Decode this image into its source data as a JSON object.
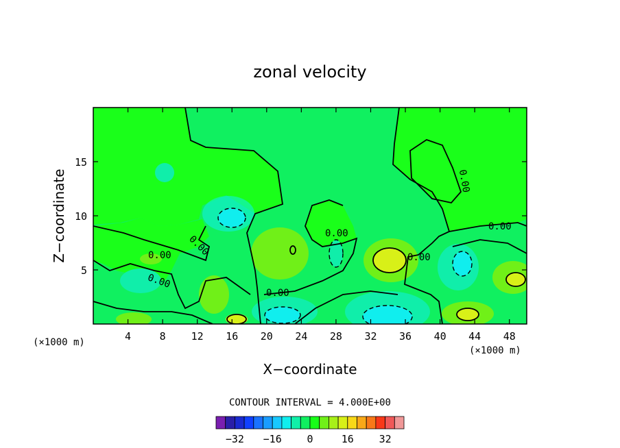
{
  "chart_data": {
    "type": "contour",
    "title": "zonal velocity",
    "xlabel": "X−coordinate",
    "ylabel": "Z−coordinate",
    "x_multiplier_label": "(×1000 m)",
    "z_multiplier_label": "(×1000 m)",
    "xlim": [
      0,
      50
    ],
    "ylim": [
      0,
      20
    ],
    "x_ticks": [
      4,
      8,
      12,
      16,
      20,
      24,
      28,
      32,
      36,
      40,
      44,
      48
    ],
    "y_ticks": [
      5,
      10,
      15
    ],
    "contour_interval_label": "CONTOUR INTERVAL = 4.000E+00",
    "contour_zero_label": "0.00",
    "colorbar": {
      "levels": [
        -40,
        -36,
        -32,
        -28,
        -24,
        -20,
        -16,
        -12,
        -8,
        -4,
        0,
        4,
        8,
        12,
        16,
        20,
        24,
        28,
        32,
        36,
        40
      ],
      "colors": [
        "#7a1fb0",
        "#2a1fa8",
        "#1a2ad0",
        "#1040ff",
        "#1a72ff",
        "#1a9cff",
        "#18c8ff",
        "#10eeee",
        "#10f0a8",
        "#10f060",
        "#18ff18",
        "#70f018",
        "#a8f018",
        "#d8f018",
        "#f8d818",
        "#f8a818",
        "#f87818",
        "#f83818",
        "#f05858",
        "#f09898"
      ],
      "tick_labels": [
        {
          "value": -32,
          "label": "−32"
        },
        {
          "value": -16,
          "label": "−16"
        },
        {
          "value": 0,
          "label": "0"
        },
        {
          "value": 16,
          "label": "16"
        },
        {
          "value": 32,
          "label": "32"
        }
      ]
    },
    "background_value": 0,
    "features": [
      {
        "kind": "negative-core",
        "x": 4,
        "z": 4.5,
        "value": -6
      },
      {
        "kind": "negative-core",
        "x": 14,
        "z": 10,
        "value": -8
      },
      {
        "kind": "negative-core",
        "x": 24,
        "z": 1,
        "value": -8
      },
      {
        "kind": "negative-core",
        "x": 34,
        "z": 1,
        "value": -10
      },
      {
        "kind": "negative-core",
        "x": 42,
        "z": 5.5,
        "value": -8
      },
      {
        "kind": "negative-core",
        "x": 8,
        "z": 13.5,
        "value": -4
      },
      {
        "kind": "positive-core",
        "x": 34.5,
        "z": 6,
        "value": 10
      },
      {
        "kind": "positive-core",
        "x": 43,
        "z": 1,
        "value": 12
      },
      {
        "kind": "positive-core",
        "x": 48.5,
        "z": 4,
        "value": 10
      },
      {
        "kind": "positive-core",
        "x": 22,
        "z": 7,
        "value": 6
      },
      {
        "kind": "positive-core",
        "x": 4.5,
        "z": 0.5,
        "value": 8
      },
      {
        "kind": "positive-core",
        "x": 16.5,
        "z": 0.5,
        "value": 8
      }
    ]
  },
  "colors": {
    "background": "#ffffff",
    "field_zero": "#1aff1a",
    "field_zero_light": "#10f060",
    "frame": "#000000"
  }
}
